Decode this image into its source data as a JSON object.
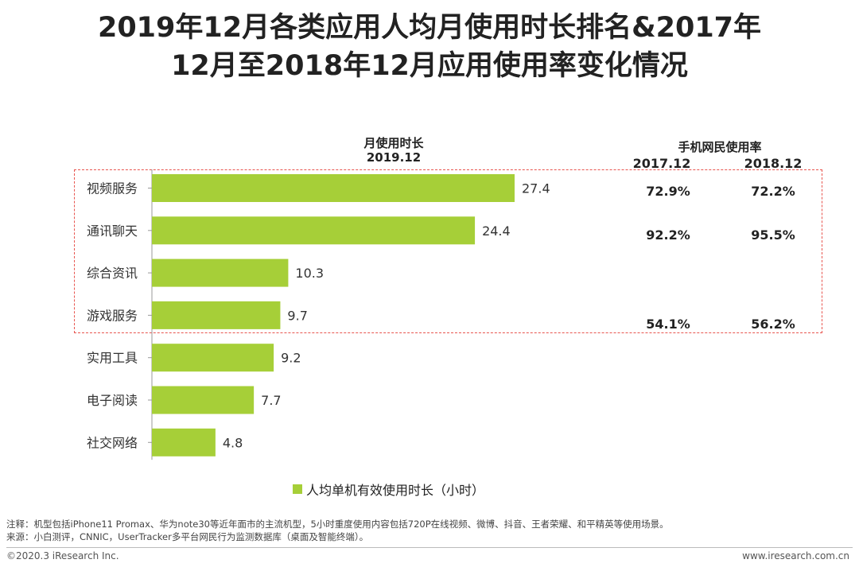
{
  "title": {
    "line1": "2019年12月各类应用人均月使用时长排名&2017年",
    "line2": "12月至2018年12月应用使用率变化情况"
  },
  "headers": {
    "monthly_usage": "月使用时长",
    "monthly_usage_period": "2019.12",
    "usage_rate": "手机网民使用率",
    "col_2017": "2017.12",
    "col_2018": "2018.12"
  },
  "chart_data": {
    "type": "bar",
    "orientation": "horizontal",
    "categories": [
      "视频服务",
      "通讯聊天",
      "综合资讯",
      "游戏服务",
      "实用工具",
      "电子阅读",
      "社交网络"
    ],
    "series": [
      {
        "name": "人均单机有效使用时长（小时）",
        "values": [
          27.4,
          24.4,
          10.3,
          9.7,
          9.2,
          7.7,
          4.8
        ],
        "color": "#a6cf38"
      }
    ],
    "value_labels": [
      "27.4",
      "24.4",
      "10.3",
      "9.7",
      "9.2",
      "7.7",
      "4.8"
    ],
    "xlim": [
      0,
      27.4
    ],
    "grid": false,
    "legend_position": "bottom"
  },
  "usage_rates": [
    {
      "category": "视频服务",
      "r2017": "72.9%",
      "r2018": "72.2%"
    },
    {
      "category": "通讯聊天",
      "r2017": "92.2%",
      "r2018": "95.5%"
    },
    {
      "category": "游戏服务",
      "r2017": "54.1%",
      "r2018": "56.2%"
    }
  ],
  "legend": {
    "label": "人均单机有效使用时长（小时）",
    "color": "#a6cf38"
  },
  "notes": {
    "line1": "注释：机型包括iPhone11 Promax、华为note30等近年面市的主流机型，5小时重度使用内容包括720P在线视频、微博、抖音、王者荣耀、和平精英等使用场景。",
    "line2": "来源：小白测评，CNNIC，UserTracker多平台网民行为监测数据库（桌面及智能终端）。"
  },
  "footer": {
    "copyright": "©2020.3 iResearch Inc.",
    "website": "www.iresearch.com.cn"
  },
  "colors": {
    "bar": "#a6cf38",
    "highlight_box": "#e8554f"
  }
}
